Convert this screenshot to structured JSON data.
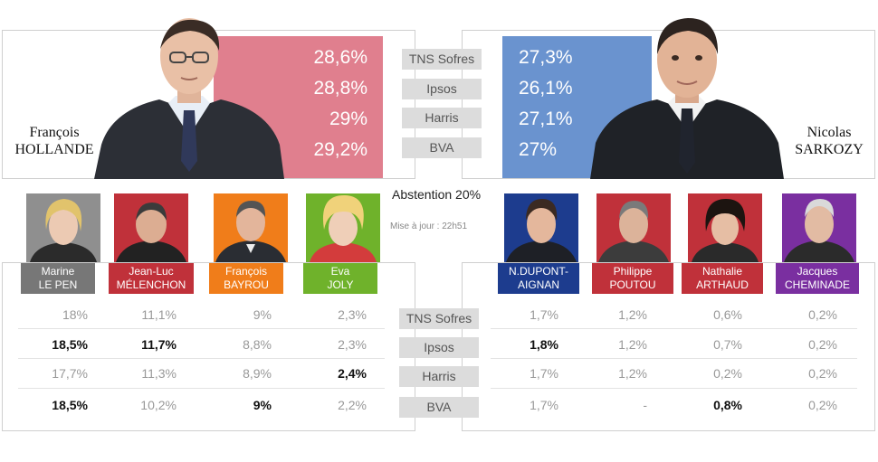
{
  "institutes": [
    "TNS Sofres",
    "Ipsos",
    "Harris",
    "BVA"
  ],
  "hollande": {
    "first_name": "François",
    "last_name": "HOLLANDE",
    "color": "#e07f8e",
    "values": [
      "28,6%",
      "28,8%",
      "29%",
      "29,2%"
    ]
  },
  "sarkozy": {
    "first_name": "Nicolas",
    "last_name": "SARKOZY",
    "color": "#6a93cf",
    "values": [
      "27,3%",
      "26,1%",
      "27,1%",
      "27%"
    ]
  },
  "abstention": "Abstention 20%",
  "update": "Mise à jour : 22h51",
  "left_candidates": [
    {
      "line1": "Marine",
      "line2": "LE PEN",
      "color": "#777777",
      "values": [
        "18%",
        "18,5%",
        "17,7%",
        "18,5%"
      ],
      "bold": [
        false,
        true,
        false,
        true
      ]
    },
    {
      "line1": "Jean-Luc",
      "line2": "MÉLENCHON",
      "color": "#c0313a",
      "values": [
        "11,1%",
        "11,7%",
        "11,3%",
        "10,2%"
      ],
      "bold": [
        false,
        true,
        false,
        false
      ]
    },
    {
      "line1": "François",
      "line2": "BAYROU",
      "color": "#f07d1a",
      "values": [
        "9%",
        "8,8%",
        "8,9%",
        "9%"
      ],
      "bold": [
        false,
        false,
        false,
        true
      ]
    },
    {
      "line1": "Eva",
      "line2": "JOLY",
      "color": "#6fb22b",
      "values": [
        "2,3%",
        "2,3%",
        "2,4%",
        "2,2%"
      ],
      "bold": [
        false,
        false,
        true,
        false
      ]
    }
  ],
  "right_candidates": [
    {
      "line1": "N.DUPONT-",
      "line2": "AIGNAN",
      "color": "#1d3c8e",
      "values": [
        "1,7%",
        "1,8%",
        "1,7%",
        "1,7%"
      ],
      "bold": [
        false,
        true,
        false,
        false
      ]
    },
    {
      "line1": "Philippe",
      "line2": "POUTOU",
      "color": "#c0313a",
      "values": [
        "1,2%",
        "1,2%",
        "1,2%",
        "-"
      ],
      "bold": [
        false,
        false,
        false,
        false
      ]
    },
    {
      "line1": "Nathalie",
      "line2": "ARTHAUD",
      "color": "#c0313a",
      "values": [
        "0,6%",
        "0,7%",
        "0,2%",
        "0,8%"
      ],
      "bold": [
        false,
        false,
        false,
        true
      ]
    },
    {
      "line1": "Jacques",
      "line2": "CHEMINADE",
      "color": "#7a2fa0",
      "values": [
        "0,2%",
        "0,2%",
        "0,2%",
        "0,2%"
      ],
      "bold": [
        false,
        false,
        false,
        false
      ]
    }
  ]
}
